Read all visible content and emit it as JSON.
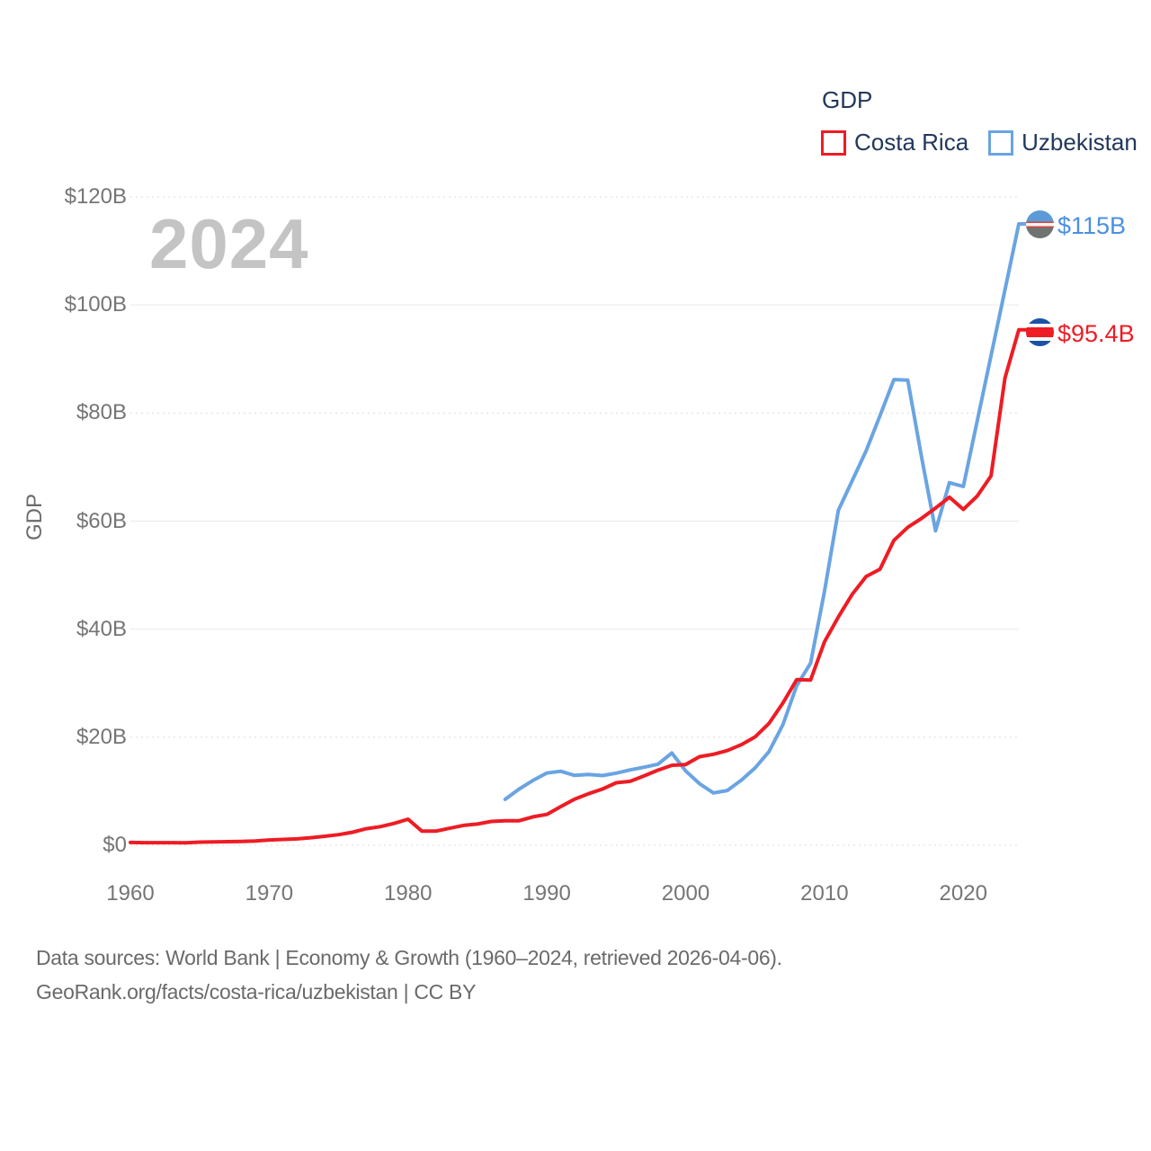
{
  "watermark": "2024",
  "legend": {
    "title": "GDP",
    "items": [
      {
        "label": "Costa Rica",
        "color": "#ee1c24"
      },
      {
        "label": "Uzbekistan",
        "color": "#6aa4e2"
      }
    ]
  },
  "chart_data": {
    "type": "line",
    "title": "GDP",
    "xlabel": "",
    "ylabel": "GDP",
    "xlim": [
      1960,
      2024
    ],
    "ylim": [
      0,
      120
    ],
    "unit": "billion USD",
    "legend_position": "top-right",
    "x_ticks": [
      {
        "label": "1960",
        "value": 1960
      },
      {
        "label": "1970",
        "value": 1970
      },
      {
        "label": "1980",
        "value": 1980
      },
      {
        "label": "1990",
        "value": 1990
      },
      {
        "label": "2000",
        "value": 2000
      },
      {
        "label": "2010",
        "value": 2010
      },
      {
        "label": "2020",
        "value": 2020
      }
    ],
    "y_ticks": [
      {
        "label": "$0",
        "value": 0,
        "line": "dotted"
      },
      {
        "label": "$20B",
        "value": 20,
        "line": "dotted"
      },
      {
        "label": "$40B",
        "value": 40,
        "line": "solid"
      },
      {
        "label": "$60B",
        "value": 60,
        "line": "solid"
      },
      {
        "label": "$80B",
        "value": 80,
        "line": "dotted"
      },
      {
        "label": "$100B",
        "value": 100,
        "line": "solid"
      },
      {
        "label": "$120B",
        "value": 120,
        "line": "dotted"
      }
    ],
    "series": [
      {
        "name": "Costa Rica",
        "color": "#ee1c24",
        "end_label": "$95.4B",
        "flag": "costa-rica",
        "start_year": 1960,
        "end_year": 2024,
        "frequency": "annual",
        "values": [
          0.51,
          0.49,
          0.48,
          0.48,
          0.46,
          0.59,
          0.62,
          0.66,
          0.72,
          0.8,
          0.98,
          1.08,
          1.18,
          1.39,
          1.67,
          1.96,
          2.41,
          3.07,
          3.45,
          4.04,
          4.83,
          2.62,
          2.61,
          3.15,
          3.67,
          3.92,
          4.41,
          4.53,
          4.55,
          5.26,
          5.71,
          7.16,
          8.54,
          9.54,
          10.4,
          11.56,
          11.84,
          12.83,
          13.9,
          14.79,
          14.95,
          16.4,
          16.84,
          17.52,
          18.6,
          20.05,
          22.53,
          26.32,
          30.66,
          30.57,
          37.66,
          42.25,
          46.47,
          49.75,
          51.1,
          56.44,
          58.85,
          60.52,
          62.42,
          64.42,
          62.16,
          64.62,
          68.38,
          86.5,
          95.4
        ]
      },
      {
        "name": "Uzbekistan",
        "color": "#6aa4e2",
        "end_label": "$115B",
        "flag": "uzbekistan",
        "start_year": 1987,
        "end_year": 2024,
        "frequency": "annual",
        "values": [
          8.5,
          10.4,
          12.0,
          13.36,
          13.7,
          12.94,
          13.1,
          12.9,
          13.35,
          13.95,
          14.45,
          14.99,
          17.08,
          13.76,
          11.4,
          9.69,
          10.13,
          12.03,
          14.31,
          17.33,
          22.31,
          29.55,
          33.69,
          47.0,
          62.0,
          67.5,
          73.0,
          79.5,
          86.2,
          86.1,
          71.8,
          58.2,
          67.1,
          66.4,
          78.5,
          90.6,
          102.8,
          115.0
        ]
      }
    ]
  },
  "footer": {
    "line1": "Data sources: World Bank | Economy & Growth (1960–2024, retrieved 2026-04-06).",
    "line2": "GeoRank.org/facts/costa-rica/uzbekistan | CC BY"
  }
}
